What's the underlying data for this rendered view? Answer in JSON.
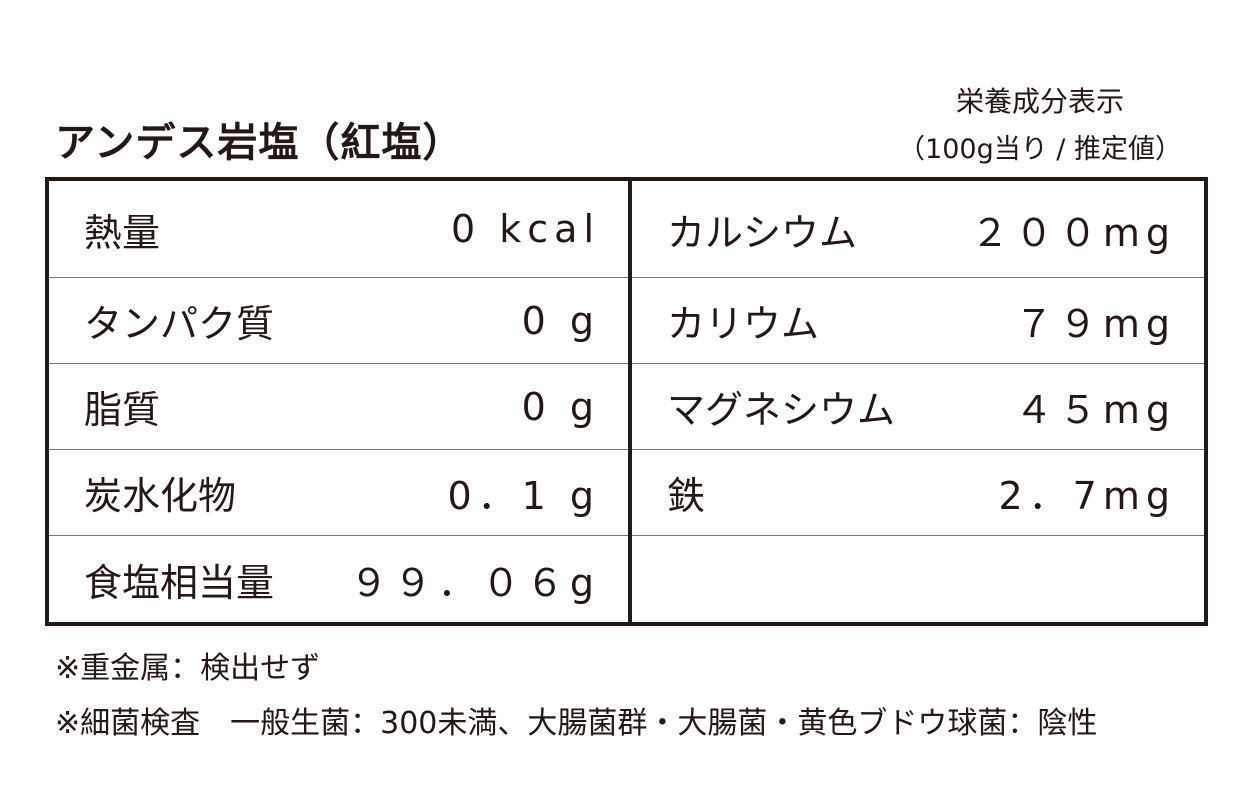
{
  "title": "アンデス岩塩（紅塩）",
  "header": {
    "line1": "栄養成分表示",
    "line2": "（100g当り / 推定値）"
  },
  "left_rows": [
    {
      "label": "熱量",
      "value": "0 kcal"
    },
    {
      "label": "タンパク質",
      "value": "0 g"
    },
    {
      "label": "脂質",
      "value": "0 g"
    },
    {
      "label": "炭水化物",
      "value": "0．1 g"
    },
    {
      "label": "食塩相当量",
      "value": "９９．０６g"
    }
  ],
  "right_rows": [
    {
      "label": "カルシウム",
      "value": "２００mg"
    },
    {
      "label": "カリウム",
      "value": "７９mg"
    },
    {
      "label": "マグネシウム",
      "value": "４５mg"
    },
    {
      "label": "鉄",
      "value": "2．7mg"
    }
  ],
  "notes": [
    "※重金属：検出せず",
    "※細菌検査　一般生菌：300未満、大腸菌群・大腸菌・黄色ブドウ球菌：陰性"
  ]
}
